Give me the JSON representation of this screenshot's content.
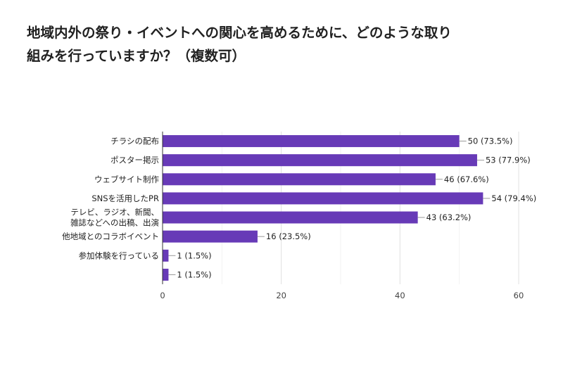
{
  "chart_data": {
    "type": "bar",
    "orientation": "horizontal",
    "title_lines": [
      "地域内外の祭り・イベントへの関心を高めるために、どのような取り",
      "組みを行っていますか？（複数可）"
    ],
    "categories": [
      [
        "チラシの配布"
      ],
      [
        "ポスター掲示"
      ],
      [
        "ウェブサイト制作"
      ],
      [
        "SNSを活用したPR"
      ],
      [
        "テレビ、ラジオ、新聞、",
        "雑誌などへの出稿、出演"
      ],
      [
        "他地域とのコラボイベント"
      ],
      [
        "参加体験を行っている"
      ],
      [
        ""
      ]
    ],
    "values": [
      50,
      53,
      46,
      54,
      43,
      16,
      1,
      1
    ],
    "data_labels": [
      "50 (73.5%)",
      "53 (77.9%)",
      "46 (67.6%)",
      "54 (79.4%)",
      "43 (63.2%)",
      "16 (23.5%)",
      "1 (1.5%)",
      "1 (1.5%)"
    ],
    "xlim": [
      0,
      60
    ],
    "xticks": [
      0,
      20,
      40,
      60
    ],
    "xtick_labels": [
      "0",
      "20",
      "40",
      "60"
    ],
    "bar_color": "#673ab7",
    "grid": true
  }
}
